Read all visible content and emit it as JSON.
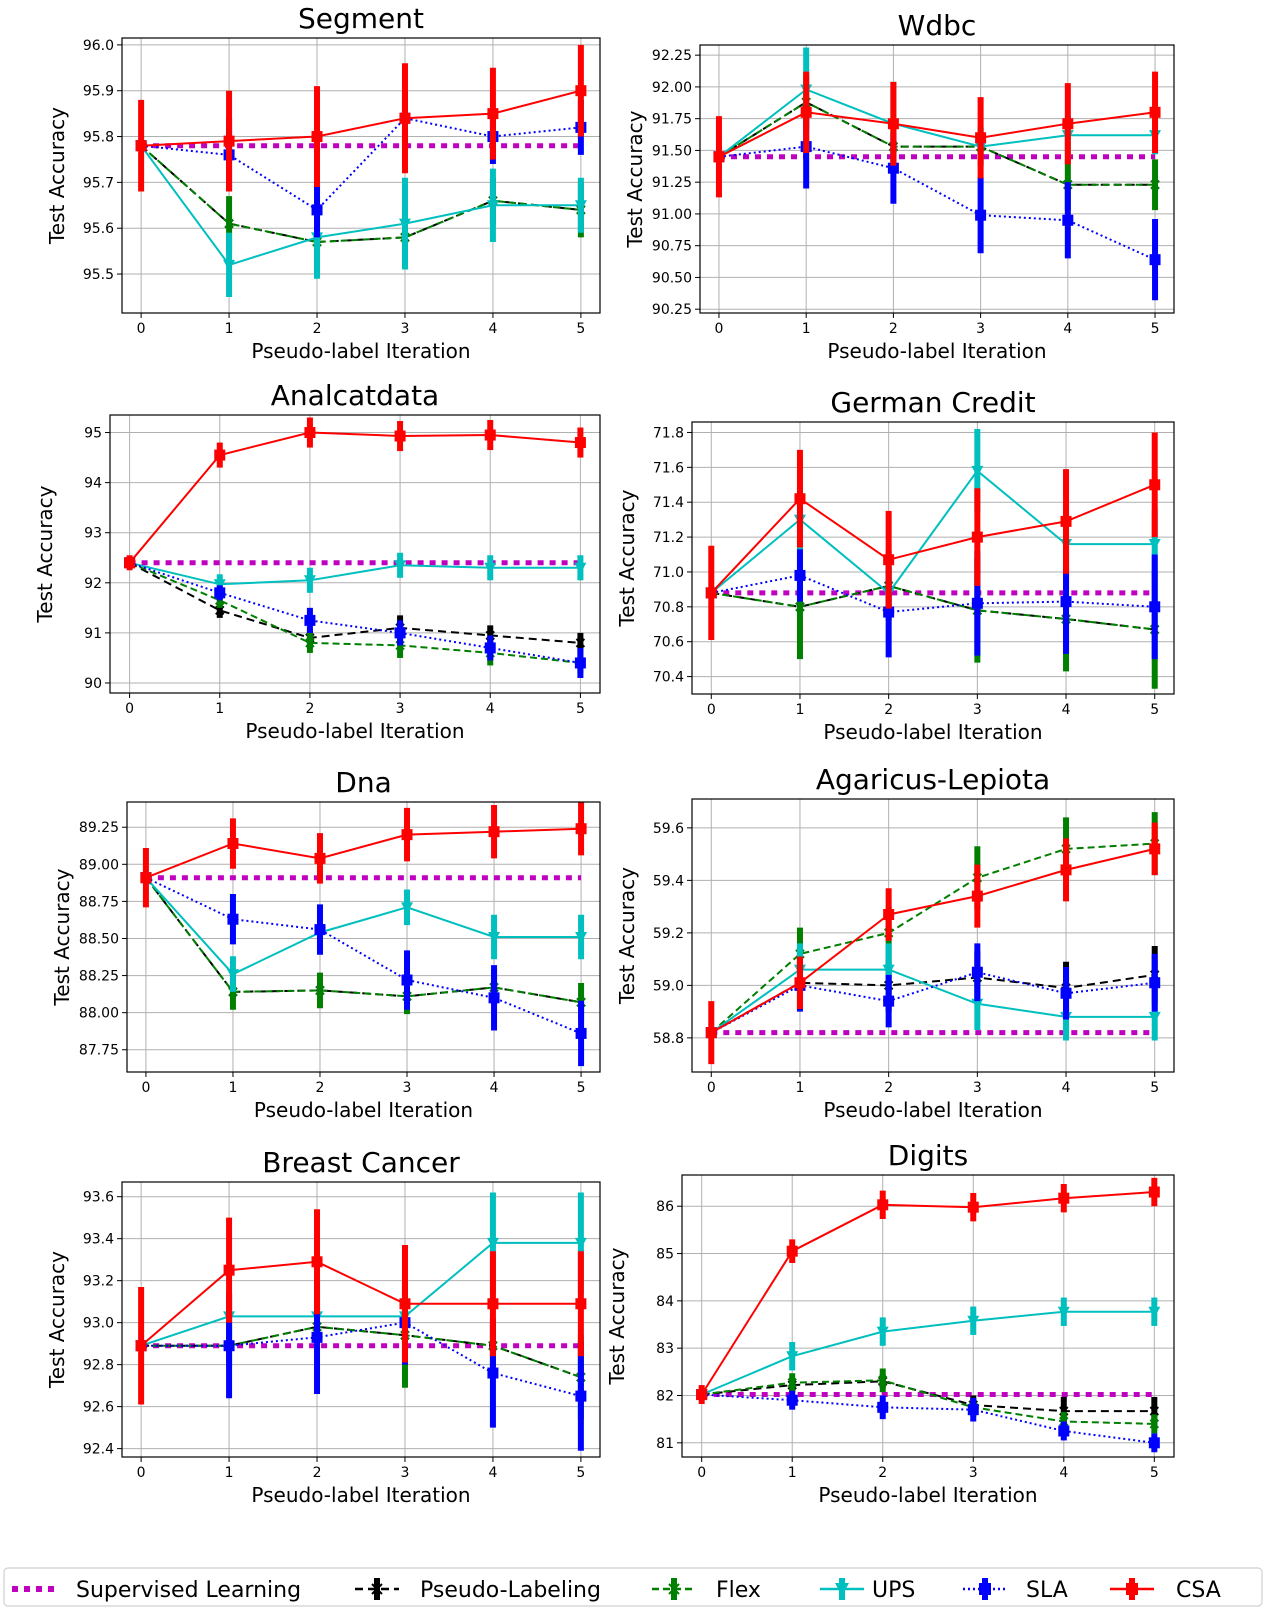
{
  "colors": {
    "Supervised Learning": "#bf00bf",
    "Pseudo-Labeling": "#000000",
    "Flex": "#007f00",
    "UPS": "#00bfbf",
    "SLA": "#0000ff",
    "CSA": "#ff0000"
  },
  "legend": [
    "Supervised Learning",
    "Pseudo-Labeling",
    "Flex",
    "UPS",
    "SLA",
    "CSA"
  ],
  "chart_data": [
    {
      "type": "line",
      "title": "Segment",
      "xlabel": "Pseudo-label Iteration",
      "ylabel": "Test Accuracy",
      "x": [
        0,
        1,
        2,
        3,
        4,
        5
      ],
      "ylim": [
        95.415,
        96.015
      ],
      "yticks": [
        "95.5",
        "95.6",
        "95.7",
        "95.8",
        "95.9",
        "96.0"
      ],
      "series": [
        {
          "name": "Supervised Learning",
          "values": [
            95.78,
            95.78,
            95.78,
            95.78,
            95.78,
            95.78
          ],
          "err": [
            0,
            0,
            0,
            0,
            0,
            0
          ]
        },
        {
          "name": "Pseudo-Labeling",
          "values": [
            95.78,
            95.61,
            95.57,
            95.58,
            95.66,
            95.64
          ],
          "err": [
            0,
            0,
            0,
            0,
            0,
            0
          ]
        },
        {
          "name": "Flex",
          "values": [
            95.78,
            95.61,
            95.57,
            95.58,
            95.66,
            95.64
          ],
          "err": [
            0,
            0.06,
            0.08,
            0.06,
            0.05,
            0.06
          ]
        },
        {
          "name": "UPS",
          "values": [
            95.78,
            95.52,
            95.58,
            95.61,
            95.65,
            95.65
          ],
          "err": [
            0,
            0.07,
            0.09,
            0.1,
            0.08,
            0.06
          ]
        },
        {
          "name": "SLA",
          "values": [
            95.78,
            95.76,
            95.64,
            95.84,
            95.8,
            95.82
          ],
          "err": [
            0,
            0.08,
            0.06,
            0.06,
            0.06,
            0.06
          ]
        },
        {
          "name": "CSA",
          "values": [
            95.78,
            95.79,
            95.8,
            95.84,
            95.85,
            95.9
          ],
          "err": [
            0.1,
            0.11,
            0.11,
            0.12,
            0.1,
            0.1
          ]
        }
      ]
    },
    {
      "type": "line",
      "title": "Wdbc",
      "xlabel": "Pseudo-label Iteration",
      "ylabel": "Test Accuracy",
      "x": [
        0,
        1,
        2,
        3,
        4,
        5
      ],
      "ylim": [
        90.22,
        92.33
      ],
      "yticks": [
        "90.25",
        "90.50",
        "90.75",
        "91.00",
        "91.25",
        "91.50",
        "91.75",
        "92.00",
        "92.25"
      ],
      "series": [
        {
          "name": "Supervised Learning",
          "values": [
            91.45,
            91.45,
            91.45,
            91.45,
            91.45,
            91.45
          ],
          "err": [
            0,
            0,
            0,
            0,
            0,
            0
          ]
        },
        {
          "name": "Pseudo-Labeling",
          "values": [
            91.45,
            91.88,
            91.53,
            91.53,
            91.23,
            91.23
          ],
          "err": [
            0,
            0,
            0,
            0,
            0,
            0
          ]
        },
        {
          "name": "Flex",
          "values": [
            91.45,
            91.88,
            91.53,
            91.53,
            91.23,
            91.23
          ],
          "err": [
            0,
            0.2,
            0.2,
            0.15,
            0.2,
            0.2
          ]
        },
        {
          "name": "UPS",
          "values": [
            91.45,
            91.98,
            91.71,
            91.53,
            91.62,
            91.62
          ],
          "err": [
            0,
            0.33,
            0.33,
            0.15,
            0.15,
            0.15
          ]
        },
        {
          "name": "SLA",
          "values": [
            91.45,
            91.53,
            91.36,
            90.99,
            90.95,
            90.64
          ],
          "err": [
            0,
            0.33,
            0.28,
            0.3,
            0.3,
            0.32
          ]
        },
        {
          "name": "CSA",
          "values": [
            91.45,
            91.8,
            91.71,
            91.6,
            91.71,
            91.8
          ],
          "err": [
            0.32,
            0.32,
            0.33,
            0.32,
            0.32,
            0.32
          ]
        }
      ]
    },
    {
      "type": "line",
      "title": "Analcatdata",
      "xlabel": "Pseudo-label Iteration",
      "ylabel": "Test Accuracy",
      "x": [
        0,
        1,
        2,
        3,
        4,
        5
      ],
      "ylim": [
        89.8,
        95.35
      ],
      "yticks": [
        "90",
        "91",
        "92",
        "93",
        "94",
        "95"
      ],
      "series": [
        {
          "name": "Supervised Learning",
          "values": [
            92.4,
            92.4,
            92.4,
            92.4,
            92.4,
            92.4
          ],
          "err": [
            0,
            0,
            0,
            0,
            0,
            0
          ]
        },
        {
          "name": "Pseudo-Labeling",
          "values": [
            92.4,
            91.45,
            90.9,
            91.1,
            90.95,
            90.8
          ],
          "err": [
            0,
            0.15,
            0.15,
            0.25,
            0.2,
            0.2
          ]
        },
        {
          "name": "Flex",
          "values": [
            92.4,
            91.65,
            90.8,
            90.75,
            90.6,
            90.4
          ],
          "err": [
            0,
            0.15,
            0.2,
            0.25,
            0.25,
            0.2
          ]
        },
        {
          "name": "UPS",
          "values": [
            92.4,
            91.97,
            92.05,
            92.35,
            92.3,
            92.3
          ],
          "err": [
            0,
            0.2,
            0.25,
            0.25,
            0.25,
            0.25
          ]
        },
        {
          "name": "SLA",
          "values": [
            92.4,
            91.8,
            91.25,
            91.0,
            90.7,
            90.4
          ],
          "err": [
            0,
            0.15,
            0.25,
            0.25,
            0.25,
            0.3
          ]
        },
        {
          "name": "CSA",
          "values": [
            92.4,
            94.55,
            95.0,
            94.93,
            94.95,
            94.8
          ],
          "err": [
            0.15,
            0.25,
            0.3,
            0.3,
            0.3,
            0.3
          ]
        }
      ]
    },
    {
      "type": "line",
      "title": "German Credit",
      "xlabel": "Pseudo-label Iteration",
      "ylabel": "Test Accuracy",
      "x": [
        0,
        1,
        2,
        3,
        4,
        5
      ],
      "ylim": [
        70.3,
        71.86
      ],
      "yticks": [
        "70.4",
        "70.6",
        "70.8",
        "71.0",
        "71.2",
        "71.4",
        "71.6",
        "71.8"
      ],
      "series": [
        {
          "name": "Supervised Learning",
          "values": [
            70.88,
            70.88,
            70.88,
            70.88,
            70.88,
            70.88
          ],
          "err": [
            0,
            0,
            0,
            0,
            0,
            0
          ]
        },
        {
          "name": "Pseudo-Labeling",
          "values": [
            70.88,
            70.8,
            70.92,
            70.78,
            70.73,
            70.67
          ],
          "err": [
            0,
            0,
            0,
            0,
            0,
            0
          ]
        },
        {
          "name": "Flex",
          "values": [
            70.88,
            70.8,
            70.92,
            70.78,
            70.73,
            70.67
          ],
          "err": [
            0,
            0.3,
            0.2,
            0.3,
            0.3,
            0.34
          ]
        },
        {
          "name": "UPS",
          "values": [
            70.88,
            71.3,
            70.88,
            71.58,
            71.16,
            71.16
          ],
          "err": [
            0,
            0.2,
            0.1,
            0.24,
            0.2,
            0.2
          ]
        },
        {
          "name": "SLA",
          "values": [
            70.88,
            70.98,
            70.77,
            70.82,
            70.83,
            70.8
          ],
          "err": [
            0,
            0.15,
            0.26,
            0.3,
            0.3,
            0.3
          ]
        },
        {
          "name": "CSA",
          "values": [
            70.88,
            71.42,
            71.07,
            71.2,
            71.29,
            71.5
          ],
          "err": [
            0.27,
            0.28,
            0.28,
            0.28,
            0.3,
            0.3
          ]
        }
      ]
    },
    {
      "type": "line",
      "title": "Dna",
      "xlabel": "Pseudo-label Iteration",
      "ylabel": "Test Accuracy",
      "x": [
        0,
        1,
        2,
        3,
        4,
        5
      ],
      "ylim": [
        87.6,
        89.42
      ],
      "yticks": [
        "87.75",
        "88.00",
        "88.25",
        "88.50",
        "88.75",
        "89.00",
        "89.25"
      ],
      "series": [
        {
          "name": "Supervised Learning",
          "values": [
            88.91,
            88.91,
            88.91,
            88.91,
            88.91,
            88.91
          ],
          "err": [
            0,
            0,
            0,
            0,
            0,
            0
          ]
        },
        {
          "name": "Pseudo-Labeling",
          "values": [
            88.91,
            88.14,
            88.15,
            88.11,
            88.17,
            88.07
          ],
          "err": [
            0,
            0,
            0,
            0,
            0,
            0
          ]
        },
        {
          "name": "Flex",
          "values": [
            88.91,
            88.14,
            88.15,
            88.11,
            88.17,
            88.07
          ],
          "err": [
            0,
            0.12,
            0.12,
            0.12,
            0.12,
            0.13
          ]
        },
        {
          "name": "UPS",
          "values": [
            88.91,
            88.26,
            88.54,
            88.71,
            88.51,
            88.51
          ],
          "err": [
            0,
            0.12,
            0.12,
            0.12,
            0.15,
            0.15
          ]
        },
        {
          "name": "SLA",
          "values": [
            88.91,
            88.63,
            88.56,
            88.22,
            88.1,
            87.86
          ],
          "err": [
            0,
            0.17,
            0.17,
            0.2,
            0.22,
            0.22
          ]
        },
        {
          "name": "CSA",
          "values": [
            88.91,
            89.14,
            89.04,
            89.2,
            89.22,
            89.24
          ],
          "err": [
            0.2,
            0.17,
            0.17,
            0.18,
            0.18,
            0.18
          ]
        }
      ]
    },
    {
      "type": "line",
      "title": "Agaricus-Lepiota",
      "xlabel": "Pseudo-label Iteration",
      "ylabel": "Test Accuracy",
      "x": [
        0,
        1,
        2,
        3,
        4,
        5
      ],
      "ylim": [
        58.67,
        59.71
      ],
      "yticks": [
        "58.8",
        "59.0",
        "59.2",
        "59.4",
        "59.6"
      ],
      "series": [
        {
          "name": "Supervised Learning",
          "values": [
            58.82,
            58.82,
            58.82,
            58.82,
            58.82,
            58.82
          ],
          "err": [
            0,
            0,
            0,
            0,
            0,
            0
          ]
        },
        {
          "name": "Pseudo-Labeling",
          "values": [
            58.82,
            59.01,
            59.0,
            59.03,
            58.99,
            59.04
          ],
          "err": [
            0,
            0.1,
            0.1,
            0.1,
            0.1,
            0.11
          ]
        },
        {
          "name": "Flex",
          "values": [
            58.82,
            59.12,
            59.2,
            59.41,
            59.52,
            59.54
          ],
          "err": [
            0,
            0.1,
            0.1,
            0.12,
            0.12,
            0.12
          ]
        },
        {
          "name": "UPS",
          "values": [
            58.82,
            59.06,
            59.06,
            58.93,
            58.88,
            58.88
          ],
          "err": [
            0,
            0.1,
            0.1,
            0.1,
            0.09,
            0.09
          ]
        },
        {
          "name": "SLA",
          "values": [
            58.82,
            59.0,
            58.94,
            59.05,
            58.97,
            59.01
          ],
          "err": [
            0,
            0.1,
            0.1,
            0.11,
            0.1,
            0.11
          ]
        },
        {
          "name": "CSA",
          "values": [
            58.82,
            59.01,
            59.27,
            59.34,
            59.44,
            59.52
          ],
          "err": [
            0.12,
            0.1,
            0.1,
            0.12,
            0.12,
            0.1
          ]
        }
      ]
    },
    {
      "type": "line",
      "title": "Breast Cancer",
      "xlabel": "Pseudo-label Iteration",
      "ylabel": "Test Accuracy",
      "x": [
        0,
        1,
        2,
        3,
        4,
        5
      ],
      "ylim": [
        92.36,
        93.67
      ],
      "yticks": [
        "92.4",
        "92.6",
        "92.8",
        "93.0",
        "93.2",
        "93.4",
        "93.6"
      ],
      "series": [
        {
          "name": "Supervised Learning",
          "values": [
            92.89,
            92.89,
            92.89,
            92.89,
            92.89,
            92.89
          ],
          "err": [
            0,
            0,
            0,
            0,
            0,
            0
          ]
        },
        {
          "name": "Pseudo-Labeling",
          "values": [
            92.89,
            92.89,
            92.98,
            92.94,
            92.89,
            92.74
          ],
          "err": [
            0,
            0,
            0,
            0,
            0,
            0
          ]
        },
        {
          "name": "Flex",
          "values": [
            92.89,
            92.89,
            92.98,
            92.94,
            92.89,
            92.74
          ],
          "err": [
            0,
            0.1,
            0.1,
            0.25,
            0.1,
            0.2
          ]
        },
        {
          "name": "UPS",
          "values": [
            92.89,
            93.03,
            93.03,
            93.03,
            93.38,
            93.38
          ],
          "err": [
            0,
            0.1,
            0.1,
            0.1,
            0.24,
            0.24
          ]
        },
        {
          "name": "SLA",
          "values": [
            92.89,
            92.89,
            92.93,
            93.0,
            92.76,
            92.65
          ],
          "err": [
            0,
            0.25,
            0.27,
            0.2,
            0.26,
            0.26
          ]
        },
        {
          "name": "CSA",
          "values": [
            92.89,
            93.25,
            93.29,
            93.09,
            93.09,
            93.09
          ],
          "err": [
            0.28,
            0.25,
            0.25,
            0.28,
            0.25,
            0.25
          ]
        }
      ]
    },
    {
      "type": "line",
      "title": "Digits",
      "xlabel": "Pseudo-label Iteration",
      "ylabel": "Test Accuracy",
      "x": [
        0,
        1,
        2,
        3,
        4,
        5
      ],
      "ylim": [
        80.7,
        86.66
      ],
      "yticks": [
        "81",
        "82",
        "83",
        "84",
        "85",
        "86"
      ],
      "series": [
        {
          "name": "Supervised Learning",
          "values": [
            82.02,
            82.02,
            82.02,
            82.02,
            82.02,
            82.02
          ],
          "err": [
            0,
            0,
            0,
            0,
            0,
            0
          ]
        },
        {
          "name": "Pseudo-Labeling",
          "values": [
            82.02,
            82.22,
            82.3,
            81.8,
            81.67,
            81.67
          ],
          "err": [
            0,
            0.15,
            0.15,
            0.2,
            0.3,
            0.3
          ]
        },
        {
          "name": "Flex",
          "values": [
            82.02,
            82.27,
            82.32,
            81.75,
            81.45,
            81.4
          ],
          "err": [
            0,
            0.2,
            0.25,
            0.2,
            0.2,
            0.2
          ]
        },
        {
          "name": "UPS",
          "values": [
            82.02,
            82.83,
            83.35,
            83.58,
            83.77,
            83.77
          ],
          "err": [
            0,
            0.3,
            0.3,
            0.3,
            0.3,
            0.3
          ]
        },
        {
          "name": "SLA",
          "values": [
            82.02,
            81.9,
            81.75,
            81.7,
            81.25,
            81.0
          ],
          "err": [
            0,
            0.2,
            0.25,
            0.25,
            0.2,
            0.2
          ]
        },
        {
          "name": "CSA",
          "values": [
            82.02,
            85.05,
            86.03,
            85.98,
            86.17,
            86.3
          ],
          "err": [
            0.2,
            0.25,
            0.3,
            0.3,
            0.3,
            0.3
          ]
        }
      ]
    }
  ]
}
